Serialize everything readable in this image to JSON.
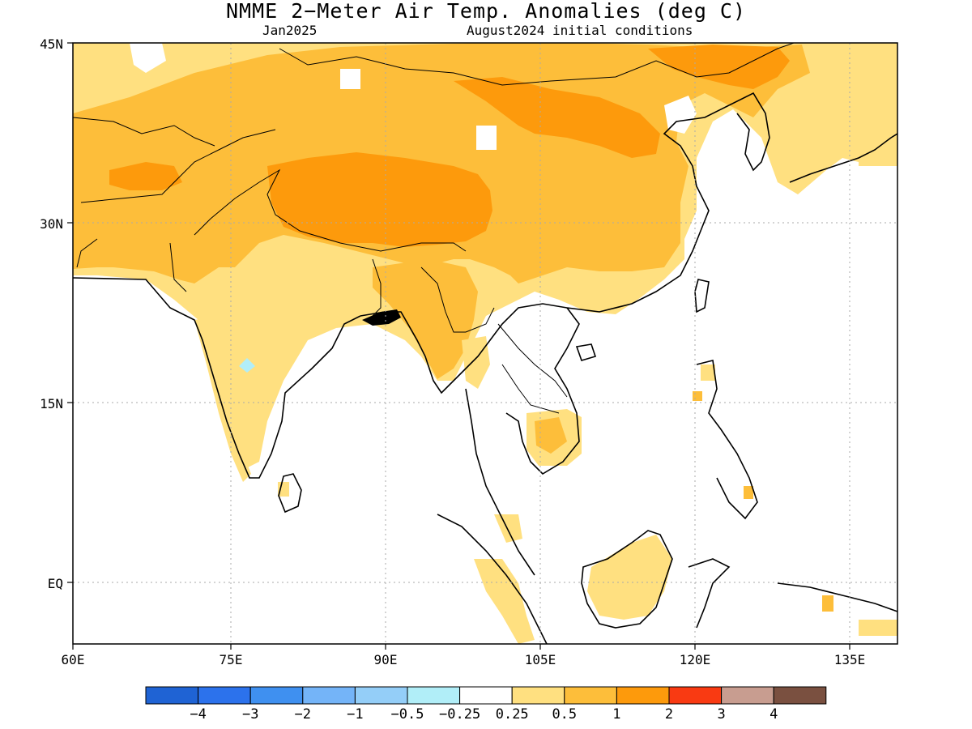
{
  "title": "NMME 2−Meter Air Temp. Anomalies (deg C)",
  "subtitle_left": "Jan2025",
  "subtitle_right": "August2024 initial conditions",
  "map": {
    "lon_range": [
      60,
      140
    ],
    "lat_range": [
      -6,
      45
    ],
    "lon_ticks": [
      "60E",
      "75E",
      "90E",
      "105E",
      "120E",
      "135E"
    ],
    "lat_ticks": [
      "45N",
      "30N",
      "15N",
      "EQ"
    ],
    "gridlines": "dotted"
  },
  "colorbar": {
    "colors": [
      "#1f63d4",
      "#2c72ec",
      "#3f90f0",
      "#74b4f8",
      "#94cef8",
      "#b1eef8",
      "#ffffff",
      "#ffe080",
      "#fdbe3a",
      "#fd9a0c",
      "#f93a12",
      "#c89d90",
      "#7a5040"
    ],
    "labels": [
      "−4",
      "−3",
      "−2",
      "−1",
      "−0.5",
      "−0.25",
      "0.25",
      "0.5",
      "1",
      "2",
      "3",
      "4"
    ]
  },
  "legend_colors": {
    "light_orange": "#ffe080",
    "orange": "#fdbe3a",
    "dark_orange": "#fd9a0c",
    "light_blue": "#b1eef8"
  }
}
